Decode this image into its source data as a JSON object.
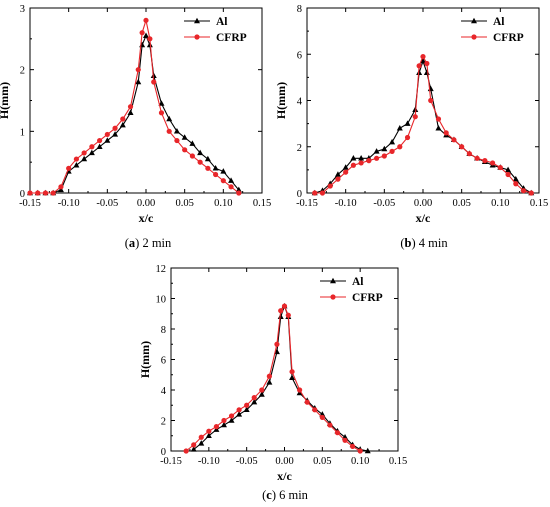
{
  "chart_data": [
    {
      "type": "line",
      "caption_letter": "a",
      "caption_text": " 2 min",
      "xlabel": "x/c",
      "ylabel": "H(mm)",
      "xlim": [
        -0.15,
        0.15
      ],
      "ylim": [
        0,
        3
      ],
      "xticks": [
        "-0.15",
        "-0.10",
        "-0.05",
        "0.00",
        "0.05",
        "0.10",
        "0.15"
      ],
      "yticks": [
        "0",
        "1",
        "2",
        "3"
      ],
      "legend_position": "top-right",
      "series": [
        {
          "name": "Al",
          "color": "#000000",
          "marker": "triangle",
          "x": [
            -0.15,
            -0.14,
            -0.13,
            -0.12,
            -0.11,
            -0.1,
            -0.09,
            -0.08,
            -0.07,
            -0.06,
            -0.05,
            -0.04,
            -0.03,
            -0.02,
            -0.01,
            -0.005,
            0.0,
            0.005,
            0.01,
            0.02,
            0.03,
            0.04,
            0.05,
            0.06,
            0.07,
            0.08,
            0.09,
            0.1,
            0.11,
            0.12
          ],
          "y": [
            0,
            0,
            0,
            0,
            0.05,
            0.35,
            0.45,
            0.55,
            0.65,
            0.75,
            0.85,
            0.95,
            1.1,
            1.3,
            1.8,
            2.4,
            2.55,
            2.4,
            1.9,
            1.45,
            1.2,
            1.0,
            0.9,
            0.8,
            0.65,
            0.55,
            0.4,
            0.35,
            0.2,
            0.05
          ]
        },
        {
          "name": "CFRP",
          "color": "#e8262a",
          "marker": "circle",
          "x": [
            -0.15,
            -0.14,
            -0.13,
            -0.12,
            -0.11,
            -0.1,
            -0.09,
            -0.08,
            -0.07,
            -0.06,
            -0.05,
            -0.04,
            -0.03,
            -0.02,
            -0.01,
            -0.005,
            0.0,
            0.005,
            0.01,
            0.02,
            0.03,
            0.04,
            0.05,
            0.06,
            0.07,
            0.08,
            0.09,
            0.1,
            0.11,
            0.12
          ],
          "y": [
            0,
            0,
            0,
            0,
            0.1,
            0.4,
            0.55,
            0.65,
            0.75,
            0.85,
            0.95,
            1.05,
            1.2,
            1.4,
            2.0,
            2.6,
            2.8,
            2.5,
            1.8,
            1.3,
            1.0,
            0.85,
            0.7,
            0.6,
            0.5,
            0.4,
            0.3,
            0.2,
            0.1,
            0.0
          ]
        }
      ]
    },
    {
      "type": "line",
      "caption_letter": "b",
      "caption_text": " 4 min",
      "xlabel": "x/c",
      "ylabel": "H(mm)",
      "xlim": [
        -0.15,
        0.15
      ],
      "ylim": [
        0,
        8
      ],
      "xticks": [
        "-0.15",
        "-0.10",
        "-0.05",
        "0.00",
        "0.05",
        "0.10",
        "0.15"
      ],
      "yticks": [
        "0",
        "2",
        "4",
        "6",
        "8"
      ],
      "legend_position": "top-right",
      "series": [
        {
          "name": "Al",
          "color": "#000000",
          "marker": "triangle",
          "x": [
            -0.14,
            -0.13,
            -0.12,
            -0.11,
            -0.1,
            -0.09,
            -0.08,
            -0.07,
            -0.06,
            -0.05,
            -0.04,
            -0.03,
            -0.02,
            -0.01,
            -0.005,
            0.0,
            0.005,
            0.01,
            0.02,
            0.03,
            0.04,
            0.05,
            0.06,
            0.07,
            0.08,
            0.09,
            0.1,
            0.11,
            0.12,
            0.13,
            0.14
          ],
          "y": [
            0,
            0.1,
            0.4,
            0.8,
            1.1,
            1.5,
            1.5,
            1.5,
            1.8,
            1.9,
            2.2,
            2.8,
            3.0,
            3.6,
            5.2,
            5.7,
            5.2,
            4.5,
            2.8,
            2.5,
            2.3,
            2.0,
            1.7,
            1.5,
            1.35,
            1.2,
            1.1,
            1.0,
            0.6,
            0.2,
            0.0
          ]
        },
        {
          "name": "CFRP",
          "color": "#e8262a",
          "marker": "circle",
          "x": [
            -0.14,
            -0.13,
            -0.12,
            -0.11,
            -0.1,
            -0.09,
            -0.08,
            -0.07,
            -0.06,
            -0.05,
            -0.04,
            -0.03,
            -0.02,
            -0.01,
            -0.005,
            0.0,
            0.005,
            0.01,
            0.02,
            0.03,
            0.04,
            0.05,
            0.06,
            0.07,
            0.08,
            0.09,
            0.1,
            0.11,
            0.12,
            0.13,
            0.14
          ],
          "y": [
            0,
            0,
            0.3,
            0.6,
            0.9,
            1.2,
            1.3,
            1.4,
            1.5,
            1.6,
            1.8,
            2.0,
            2.4,
            3.3,
            5.5,
            5.9,
            5.6,
            4.0,
            3.2,
            2.6,
            2.3,
            2.0,
            1.7,
            1.5,
            1.4,
            1.3,
            1.1,
            0.8,
            0.4,
            0.1,
            0.0
          ]
        }
      ]
    },
    {
      "type": "line",
      "caption_letter": "c",
      "caption_text": " 6 min",
      "xlabel": "x/c",
      "ylabel": "H(mm)",
      "xlim": [
        -0.15,
        0.15
      ],
      "ylim": [
        0,
        12
      ],
      "xticks": [
        "-0.15",
        "-0.10",
        "-0.05",
        "0.00",
        "0.05",
        "0.10",
        "0.15"
      ],
      "yticks": [
        "0",
        "2",
        "4",
        "6",
        "8",
        "10",
        "12"
      ],
      "legend_position": "top-right",
      "series": [
        {
          "name": "Al",
          "color": "#000000",
          "marker": "triangle",
          "x": [
            -0.12,
            -0.11,
            -0.1,
            -0.09,
            -0.08,
            -0.07,
            -0.06,
            -0.05,
            -0.04,
            -0.03,
            -0.02,
            -0.01,
            -0.005,
            0.0,
            0.005,
            0.01,
            0.02,
            0.03,
            0.04,
            0.05,
            0.06,
            0.07,
            0.08,
            0.09,
            0.1,
            0.11
          ],
          "y": [
            0.1,
            0.5,
            1.0,
            1.4,
            1.7,
            2.0,
            2.4,
            2.7,
            3.2,
            3.7,
            4.5,
            6.5,
            8.8,
            9.5,
            8.8,
            4.8,
            3.8,
            3.3,
            2.8,
            2.4,
            1.8,
            1.3,
            0.9,
            0.4,
            0.1,
            0.0
          ]
        },
        {
          "name": "CFRP",
          "color": "#e8262a",
          "marker": "circle",
          "x": [
            -0.13,
            -0.12,
            -0.11,
            -0.1,
            -0.09,
            -0.08,
            -0.07,
            -0.06,
            -0.05,
            -0.04,
            -0.03,
            -0.02,
            -0.01,
            -0.005,
            0.0,
            0.005,
            0.01,
            0.02,
            0.03,
            0.04,
            0.05,
            0.06,
            0.07,
            0.08,
            0.09,
            0.1
          ],
          "y": [
            0,
            0.4,
            0.9,
            1.3,
            1.6,
            2.0,
            2.3,
            2.7,
            3.0,
            3.5,
            4.0,
            4.9,
            7.0,
            9.2,
            9.5,
            8.9,
            5.2,
            4.0,
            3.2,
            2.7,
            2.2,
            1.7,
            1.2,
            0.7,
            0.3,
            0.0
          ]
        }
      ]
    }
  ]
}
